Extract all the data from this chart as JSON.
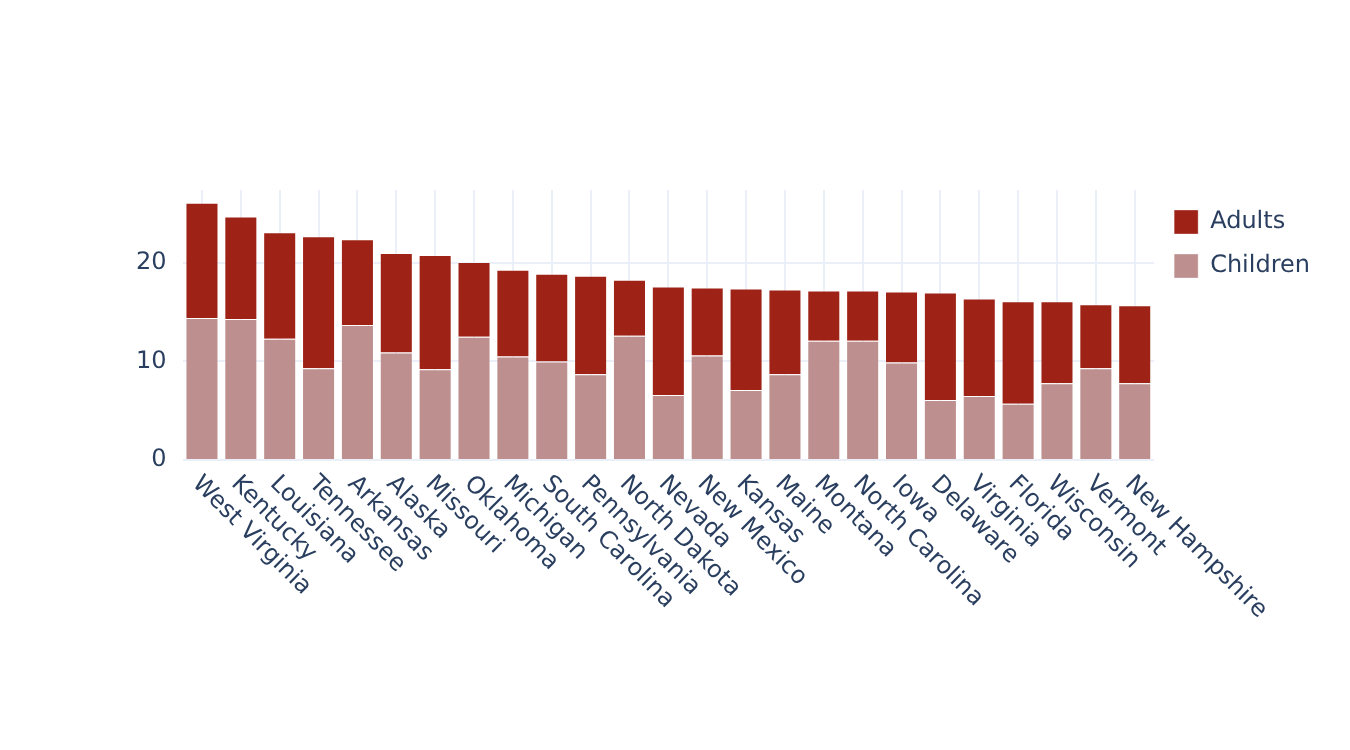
{
  "chart_data": {
    "type": "bar",
    "stacked": true,
    "categories": [
      "West Virginia",
      "Kentucky",
      "Louisiana",
      "Tennessee",
      "Arkansas",
      "Alaska",
      "Missouri",
      "Oklahoma",
      "Michigan",
      "South Carolina",
      "Pennsylvania",
      "North Dakota",
      "Nevada",
      "New Mexico",
      "Kansas",
      "Maine",
      "Montana",
      "North Carolina",
      "Iowa",
      "Delaware",
      "Virginia",
      "Florida",
      "Wisconsin",
      "Vermont",
      "New Hampshire"
    ],
    "series": [
      {
        "name": "Children",
        "color": "#bd8f8f",
        "values": [
          14.4,
          14.3,
          12.3,
          9.3,
          13.7,
          10.9,
          9.2,
          12.5,
          10.5,
          10.0,
          8.7,
          12.6,
          6.6,
          10.6,
          7.1,
          8.7,
          12.1,
          12.1,
          9.9,
          6.1,
          6.5,
          5.7,
          7.8,
          9.3,
          7.8
        ]
      },
      {
        "name": "Adults",
        "color": "#9e2316",
        "values": [
          11.7,
          10.4,
          10.8,
          13.4,
          8.7,
          10.1,
          11.6,
          7.6,
          8.8,
          8.9,
          10.0,
          5.7,
          11.0,
          6.9,
          10.3,
          8.6,
          5.1,
          5.1,
          7.2,
          10.9,
          9.9,
          10.4,
          8.3,
          6.5,
          7.9
        ]
      }
    ],
    "ylim": [
      0,
      27.4
    ],
    "yticks": [
      0,
      10,
      20
    ],
    "grid": true,
    "legend": "top right"
  }
}
